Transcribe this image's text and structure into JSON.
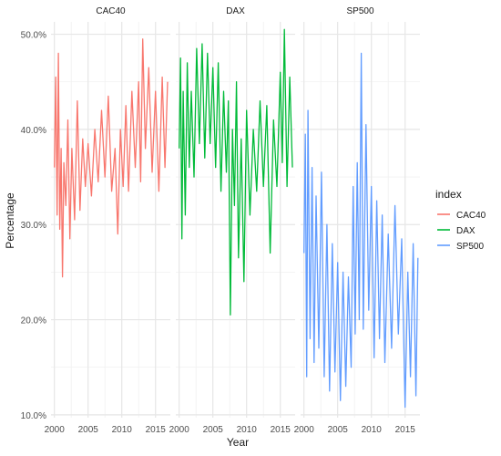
{
  "chart_data": {
    "type": "line",
    "xlabel": "Year",
    "ylabel": "Percentage",
    "xlim": [
      1999.5,
      2017.2
    ],
    "ylim": [
      9.7,
      51.3
    ],
    "x_ticks": [
      2000,
      2005,
      2010,
      2015
    ],
    "y_ticks": [
      10,
      20,
      30,
      40,
      50
    ],
    "y_tick_labels": [
      "10.0%",
      "20.0%",
      "30.0%",
      "40.0%",
      "50.0%"
    ],
    "grid": true,
    "legend_title": "index",
    "legend_position": "right",
    "panels": [
      {
        "name": "CAC40",
        "color": "#F8766D",
        "x": [
          2000.0,
          2000.2,
          2000.4,
          2000.6,
          2000.8,
          2001.0,
          2001.2,
          2001.4,
          2001.7,
          2002.0,
          2002.3,
          2002.6,
          2003.0,
          2003.4,
          2003.8,
          2004.2,
          2004.6,
          2005.0,
          2005.5,
          2006.0,
          2006.5,
          2007.0,
          2007.5,
          2008.0,
          2008.5,
          2009.0,
          2009.4,
          2009.8,
          2010.2,
          2010.6,
          2011.0,
          2011.5,
          2012.0,
          2012.5,
          2012.8,
          2013.1,
          2013.5,
          2014.0,
          2014.5,
          2015.0,
          2015.5,
          2016.0,
          2016.4,
          2016.8
        ],
        "y": [
          36.0,
          45.5,
          31.0,
          48.0,
          29.5,
          38.0,
          24.5,
          36.5,
          32.0,
          41.0,
          28.5,
          38.0,
          30.5,
          43.0,
          31.5,
          39.0,
          34.0,
          38.5,
          33.0,
          40.0,
          34.5,
          42.0,
          35.0,
          43.5,
          33.5,
          38.0,
          29.0,
          40.0,
          34.0,
          42.5,
          33.5,
          44.0,
          36.0,
          45.0,
          34.5,
          49.5,
          38.0,
          46.5,
          35.5,
          44.0,
          33.5,
          45.5,
          36.0,
          45.0
        ]
      },
      {
        "name": "DAX",
        "color": "#00BA38",
        "x": [
          2000.0,
          2000.2,
          2000.4,
          2000.6,
          2000.9,
          2001.2,
          2001.5,
          2001.8,
          2002.2,
          2002.6,
          2003.0,
          2003.4,
          2003.8,
          2004.2,
          2004.6,
          2005.0,
          2005.4,
          2005.8,
          2006.2,
          2006.6,
          2007.0,
          2007.3,
          2007.6,
          2007.9,
          2008.2,
          2008.5,
          2008.8,
          2009.2,
          2009.6,
          2010.0,
          2010.5,
          2011.0,
          2011.5,
          2012.0,
          2012.5,
          2013.0,
          2013.5,
          2014.0,
          2014.5,
          2015.0,
          2015.3,
          2015.6,
          2016.0,
          2016.4,
          2016.8
        ],
        "y": [
          38.0,
          47.5,
          28.5,
          44.0,
          31.0,
          47.0,
          36.0,
          44.0,
          35.0,
          48.5,
          38.5,
          49.0,
          37.0,
          48.0,
          38.5,
          46.5,
          36.0,
          47.0,
          33.5,
          44.0,
          35.5,
          43.0,
          20.5,
          40.0,
          32.0,
          45.0,
          26.5,
          39.0,
          24.0,
          42.0,
          31.0,
          40.0,
          33.5,
          43.0,
          34.0,
          42.5,
          27.0,
          41.0,
          34.0,
          46.0,
          36.5,
          50.5,
          34.0,
          45.5,
          36.0
        ]
      },
      {
        "name": "SP500",
        "color": "#619CFF",
        "x": [
          2000.0,
          2000.2,
          2000.4,
          2000.6,
          2000.9,
          2001.2,
          2001.5,
          2001.8,
          2002.2,
          2002.6,
          2003.0,
          2003.4,
          2003.8,
          2004.2,
          2004.6,
          2005.0,
          2005.4,
          2005.8,
          2006.2,
          2006.6,
          2007.0,
          2007.3,
          2007.6,
          2007.9,
          2008.2,
          2008.5,
          2008.8,
          2009.2,
          2009.6,
          2010.0,
          2010.4,
          2010.8,
          2011.2,
          2011.6,
          2012.0,
          2012.5,
          2013.0,
          2013.5,
          2014.0,
          2014.5,
          2015.0,
          2015.4,
          2015.8,
          2016.2,
          2016.6,
          2016.9
        ],
        "y": [
          27.0,
          39.5,
          14.0,
          42.0,
          18.0,
          36.0,
          15.5,
          33.0,
          17.0,
          35.5,
          14.0,
          30.0,
          12.5,
          28.0,
          14.5,
          26.0,
          11.5,
          25.0,
          13.0,
          24.5,
          15.0,
          34.0,
          18.5,
          36.5,
          20.0,
          48.0,
          19.0,
          40.5,
          21.0,
          34.0,
          16.0,
          32.5,
          18.0,
          31.0,
          15.5,
          29.0,
          17.0,
          32.0,
          18.5,
          28.5,
          10.8,
          25.0,
          14.0,
          28.0,
          12.0,
          26.5
        ]
      }
    ]
  }
}
